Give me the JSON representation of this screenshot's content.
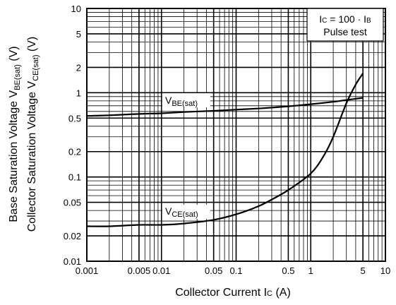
{
  "chart_data": {
    "type": "line",
    "x_scale": "log",
    "y_scale": "log",
    "xlim": [
      0.001,
      10
    ],
    "ylim": [
      0.01,
      10
    ],
    "grid": true,
    "xticks": [
      {
        "v": 0.001,
        "label": "0.001"
      },
      {
        "v": 0.005,
        "label": "0.005"
      },
      {
        "v": 0.01,
        "label": "0.01"
      },
      {
        "v": 0.05,
        "label": "0.05"
      },
      {
        "v": 0.1,
        "label": "0.1"
      },
      {
        "v": 0.5,
        "label": "0.5"
      },
      {
        "v": 1,
        "label": "1"
      },
      {
        "v": 5,
        "label": "5"
      },
      {
        "v": 10,
        "label": "10"
      }
    ],
    "yticks": [
      {
        "v": 0.01,
        "label": "0.01"
      },
      {
        "v": 0.02,
        "label": "0.02"
      },
      {
        "v": 0.05,
        "label": "0.05"
      },
      {
        "v": 0.1,
        "label": "0.1"
      },
      {
        "v": 0.2,
        "label": "0.2"
      },
      {
        "v": 0.5,
        "label": "0.5"
      },
      {
        "v": 1,
        "label": "1"
      },
      {
        "v": 2,
        "label": "2"
      },
      {
        "v": 5,
        "label": "5"
      },
      {
        "v": 10,
        "label": "10"
      }
    ],
    "xlabel": "Collector Current  I",
    "xlabel_sub": "C",
    "xlabel_unit": "  (A)",
    "ylabel_outer": {
      "main": "Base Saturation Voltage  V",
      "sub": "BE(sat)",
      "unit": "  (V)"
    },
    "ylabel_inner": {
      "main": "Collector Saturation Voltage  V",
      "sub": "CE(sat)",
      "unit": "  (V)"
    },
    "legend_box": {
      "line1_parts": [
        "I",
        "C",
        " = 100 · I",
        "B"
      ],
      "line2": "Pulse test",
      "placement": "top-right"
    },
    "series": [
      {
        "name": "V",
        "name_sub": "BE(sat)",
        "x": [
          0.001,
          0.002,
          0.005,
          0.01,
          0.02,
          0.05,
          0.1,
          0.2,
          0.5,
          1,
          2,
          3,
          5
        ],
        "y": [
          0.53,
          0.54,
          0.56,
          0.57,
          0.59,
          0.61,
          0.63,
          0.65,
          0.69,
          0.73,
          0.78,
          0.82,
          0.87
        ]
      },
      {
        "name": "V",
        "name_sub": "CE(sat)",
        "x": [
          0.001,
          0.002,
          0.005,
          0.01,
          0.02,
          0.05,
          0.1,
          0.2,
          0.3,
          0.5,
          1,
          1.5,
          2,
          3,
          4,
          5
        ],
        "y": [
          0.026,
          0.026,
          0.027,
          0.027,
          0.028,
          0.031,
          0.036,
          0.045,
          0.054,
          0.07,
          0.11,
          0.18,
          0.3,
          0.75,
          1.25,
          1.7
        ]
      }
    ]
  }
}
